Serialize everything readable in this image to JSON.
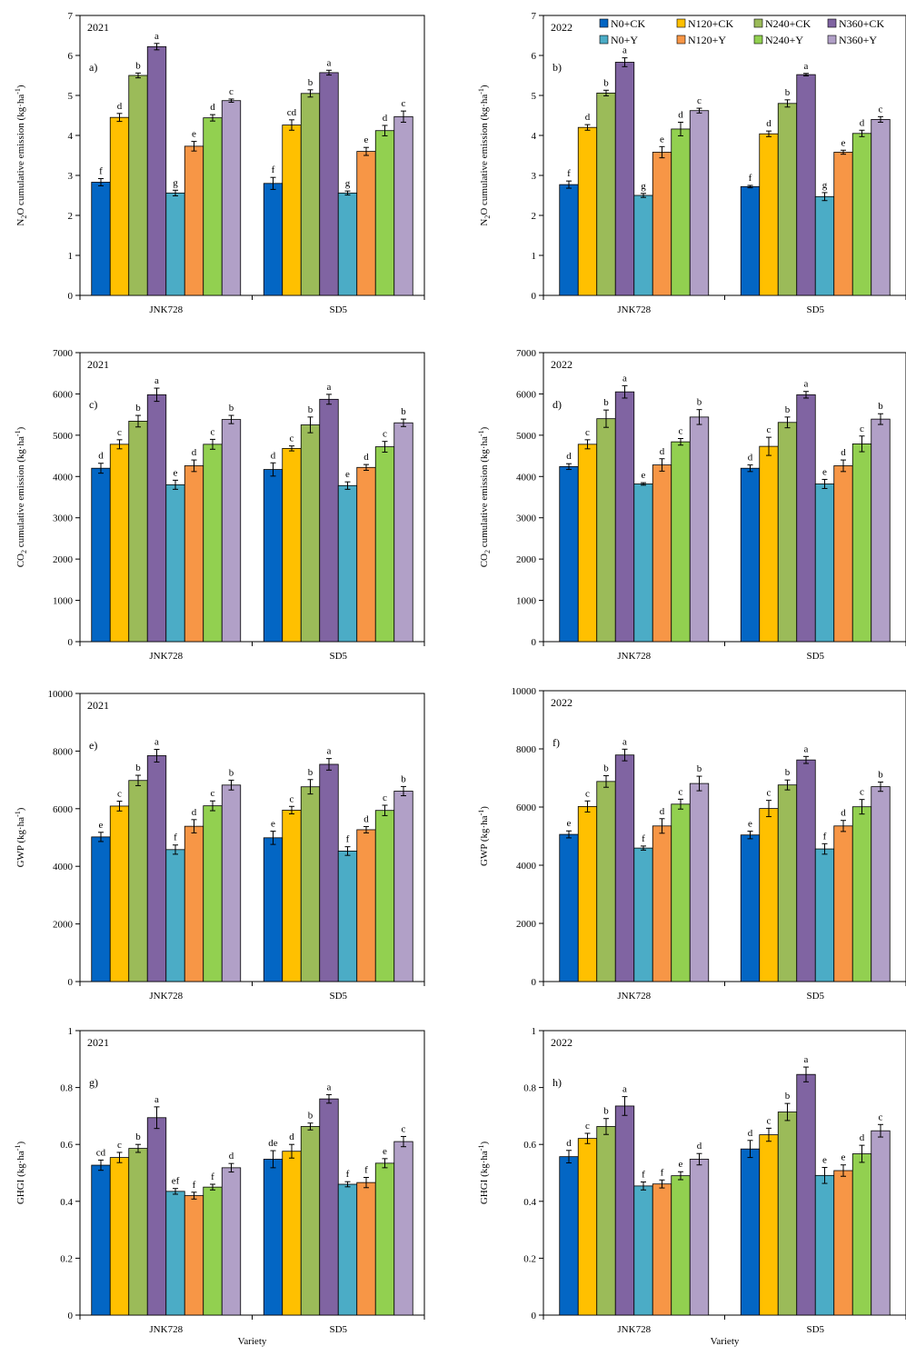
{
  "series_meta": [
    {
      "name": "N0+CK",
      "color": "#0366C4"
    },
    {
      "name": "N120+CK",
      "color": "#FFC000"
    },
    {
      "name": "N240+CK",
      "color": "#9BBB59"
    },
    {
      "name": "N360+CK",
      "color": "#8064A2"
    },
    {
      "name": "N0+Y",
      "color": "#4BACC6"
    },
    {
      "name": "N120+Y",
      "color": "#F79646"
    },
    {
      "name": "N240+Y",
      "color": "#92D050"
    },
    {
      "name": "N360+Y",
      "color": "#B1A0C7"
    }
  ],
  "chart_data": [
    {
      "type": "bar",
      "panel": "a)",
      "year": "2021",
      "ylabel": "N2O cumulative emission (kg·ha-1)",
      "xlabel": "",
      "ylim": [
        0,
        7
      ],
      "yticks": [
        "0",
        "1",
        "2",
        "3",
        "4",
        "5",
        "6",
        "7"
      ],
      "categories": [
        "JNK728",
        "SD5"
      ],
      "values": [
        [
          2.83,
          4.45,
          5.5,
          6.22,
          2.56,
          3.73,
          4.44,
          4.87
        ],
        [
          2.8,
          4.26,
          5.05,
          5.57,
          2.56,
          3.6,
          4.12,
          4.47
        ]
      ],
      "errors": [
        [
          0.09,
          0.1,
          0.06,
          0.08,
          0.07,
          0.12,
          0.08,
          0.04
        ],
        [
          0.15,
          0.13,
          0.09,
          0.06,
          0.05,
          0.1,
          0.13,
          0.14
        ]
      ],
      "letters": [
        [
          "f",
          "d",
          "b",
          "a",
          "g",
          "e",
          "d",
          "c"
        ],
        [
          "f",
          "cd",
          "b",
          "a",
          "g",
          "e",
          "d",
          "c"
        ]
      ]
    },
    {
      "type": "bar",
      "panel": "b)",
      "year": "2022",
      "ylabel": "N2O cumulative emission (kg·ha-1)",
      "xlabel": "",
      "ylim": [
        0,
        7
      ],
      "yticks": [
        "0",
        "1",
        "2",
        "3",
        "4",
        "5",
        "6",
        "7"
      ],
      "categories": [
        "JNK728",
        "SD5"
      ],
      "values": [
        [
          2.77,
          4.2,
          5.06,
          5.83,
          2.5,
          3.58,
          4.16,
          4.62
        ],
        [
          2.72,
          4.04,
          4.8,
          5.52,
          2.47,
          3.58,
          4.05,
          4.4
        ]
      ],
      "errors": [
        [
          0.09,
          0.07,
          0.07,
          0.11,
          0.05,
          0.14,
          0.17,
          0.06
        ],
        [
          0.03,
          0.07,
          0.09,
          0.03,
          0.1,
          0.05,
          0.08,
          0.07
        ]
      ],
      "letters": [
        [
          "f",
          "d",
          "b",
          "a",
          "g",
          "e",
          "d",
          "c"
        ],
        [
          "f",
          "d",
          "b",
          "a",
          "g",
          "e",
          "d",
          "c"
        ]
      ]
    },
    {
      "type": "bar",
      "panel": "c)",
      "year": "2021",
      "ylabel": "CO2 cumulative emission (kg·ha-1)",
      "xlabel": "",
      "ylim": [
        0,
        7000
      ],
      "yticks": [
        "0",
        "1000",
        "2000",
        "3000",
        "4000",
        "5000",
        "6000",
        "7000"
      ],
      "categories": [
        "JNK728",
        "SD5"
      ],
      "values": [
        [
          4200,
          4780,
          5340,
          5980,
          3800,
          4260,
          4780,
          5380
        ],
        [
          4170,
          4680,
          5250,
          5870,
          3780,
          4220,
          4720,
          5300
        ]
      ],
      "errors": [
        [
          120,
          110,
          140,
          160,
          110,
          140,
          120,
          100
        ],
        [
          160,
          60,
          190,
          120,
          90,
          70,
          130,
          90
        ]
      ],
      "letters": [
        [
          "d",
          "c",
          "b",
          "a",
          "e",
          "d",
          "c",
          "b"
        ],
        [
          "d",
          "c",
          "b",
          "a",
          "e",
          "d",
          "c",
          "b"
        ]
      ]
    },
    {
      "type": "bar",
      "panel": "d)",
      "year": "2022",
      "ylabel": "CO2 cumulative emission (kg·ha-1)",
      "xlabel": "",
      "ylim": [
        0,
        7000
      ],
      "yticks": [
        "0",
        "1000",
        "2000",
        "3000",
        "4000",
        "5000",
        "6000",
        "7000"
      ],
      "categories": [
        "JNK728",
        "SD5"
      ],
      "values": [
        [
          4240,
          4780,
          5400,
          6050,
          3820,
          4280,
          4840,
          5440
        ],
        [
          4200,
          4730,
          5310,
          5980,
          3820,
          4260,
          4790,
          5390
        ]
      ],
      "errors": [
        [
          70,
          110,
          210,
          150,
          30,
          150,
          80,
          180
        ],
        [
          80,
          220,
          130,
          80,
          110,
          140,
          190,
          130
        ]
      ],
      "letters": [
        [
          "d",
          "c",
          "b",
          "a",
          "e",
          "d",
          "c",
          "b"
        ],
        [
          "d",
          "c",
          "b",
          "a",
          "e",
          "d",
          "c",
          "b"
        ]
      ]
    },
    {
      "type": "bar",
      "panel": "e)",
      "year": "2021",
      "ylabel": "GWP (kg·ha-1)",
      "xlabel": "",
      "ylim": [
        0,
        10000
      ],
      "yticks": [
        "0",
        "2000",
        "4000",
        "6000",
        "8000",
        "10000"
      ],
      "categories": [
        "JNK728",
        "SD5"
      ],
      "values": [
        [
          5020,
          6090,
          6980,
          7840,
          4580,
          5390,
          6100,
          6820
        ],
        [
          4990,
          5950,
          6760,
          7540,
          4530,
          5270,
          5940,
          6610
        ]
      ],
      "errors": [
        [
          160,
          170,
          180,
          220,
          160,
          230,
          170,
          170
        ],
        [
          230,
          130,
          250,
          200,
          150,
          110,
          180,
          160
        ]
      ],
      "letters": [
        [
          "e",
          "c",
          "b",
          "a",
          "f",
          "d",
          "c",
          "b"
        ],
        [
          "e",
          "c",
          "b",
          "a",
          "f",
          "d",
          "c",
          "b"
        ]
      ]
    },
    {
      "type": "bar",
      "panel": "f)",
      "year": "2022",
      "ylabel": "GWP (kg·ha-1)",
      "xlabel": "",
      "ylim": [
        0,
        10000
      ],
      "yticks": [
        "0",
        "2000",
        "4000",
        "6000",
        "8000",
        "10000"
      ],
      "categories": [
        "JNK728",
        "SD5"
      ],
      "values": [
        [
          5060,
          6020,
          6880,
          7790,
          4590,
          5350,
          6100,
          6810
        ],
        [
          5040,
          5950,
          6760,
          7620,
          4560,
          5350,
          6010,
          6700
        ]
      ],
      "errors": [
        [
          120,
          190,
          200,
          200,
          70,
          250,
          170,
          250
        ],
        [
          130,
          280,
          170,
          120,
          180,
          190,
          250,
          160
        ]
      ],
      "letters": [
        [
          "e",
          "c",
          "b",
          "a",
          "f",
          "d",
          "c",
          "b"
        ],
        [
          "e",
          "c",
          "b",
          "a",
          "f",
          "d",
          "c",
          "b"
        ]
      ]
    },
    {
      "type": "bar",
      "panel": "g)",
      "year": "2021",
      "ylabel": "GHGI (kg·ha-1)",
      "xlabel": "Variety",
      "ylim": [
        0,
        1
      ],
      "yticks": [
        "0",
        "0.2",
        "0.4",
        "0.6",
        "0.8",
        "1"
      ],
      "categories": [
        "JNK728",
        "SD5"
      ],
      "values": [
        [
          0.527,
          0.554,
          0.586,
          0.694,
          0.435,
          0.42,
          0.45,
          0.518
        ],
        [
          0.548,
          0.576,
          0.663,
          0.76,
          0.46,
          0.466,
          0.534,
          0.61
        ]
      ],
      "errors": [
        [
          0.018,
          0.018,
          0.014,
          0.038,
          0.01,
          0.012,
          0.01,
          0.015
        ],
        [
          0.03,
          0.024,
          0.012,
          0.015,
          0.009,
          0.018,
          0.016,
          0.018
        ]
      ],
      "letters": [
        [
          "cd",
          "c",
          "b",
          "a",
          "ef",
          "f",
          "f",
          "d"
        ],
        [
          "de",
          "d",
          "b",
          "a",
          "f",
          "f",
          "e",
          "c"
        ]
      ]
    },
    {
      "type": "bar",
      "panel": "h)",
      "year": "2022",
      "ylabel": "GHGI (kg·ha-1)",
      "xlabel": "Variety",
      "ylim": [
        0,
        1
      ],
      "yticks": [
        "0",
        "0.2",
        "0.4",
        "0.6",
        "0.8",
        "1"
      ],
      "categories": [
        "JNK728",
        "SD5"
      ],
      "values": [
        [
          0.557,
          0.621,
          0.663,
          0.735,
          0.454,
          0.461,
          0.49,
          0.548
        ],
        [
          0.584,
          0.634,
          0.714,
          0.846,
          0.491,
          0.508,
          0.567,
          0.648
        ]
      ],
      "errors": [
        [
          0.022,
          0.018,
          0.028,
          0.033,
          0.014,
          0.014,
          0.014,
          0.02
        ],
        [
          0.03,
          0.023,
          0.03,
          0.026,
          0.028,
          0.02,
          0.03,
          0.022
        ]
      ],
      "letters": [
        [
          "d",
          "c",
          "b",
          "a",
          "f",
          "f",
          "e",
          "d"
        ],
        [
          "d",
          "c",
          "b",
          "a",
          "e",
          "e",
          "d",
          "c"
        ]
      ]
    }
  ]
}
